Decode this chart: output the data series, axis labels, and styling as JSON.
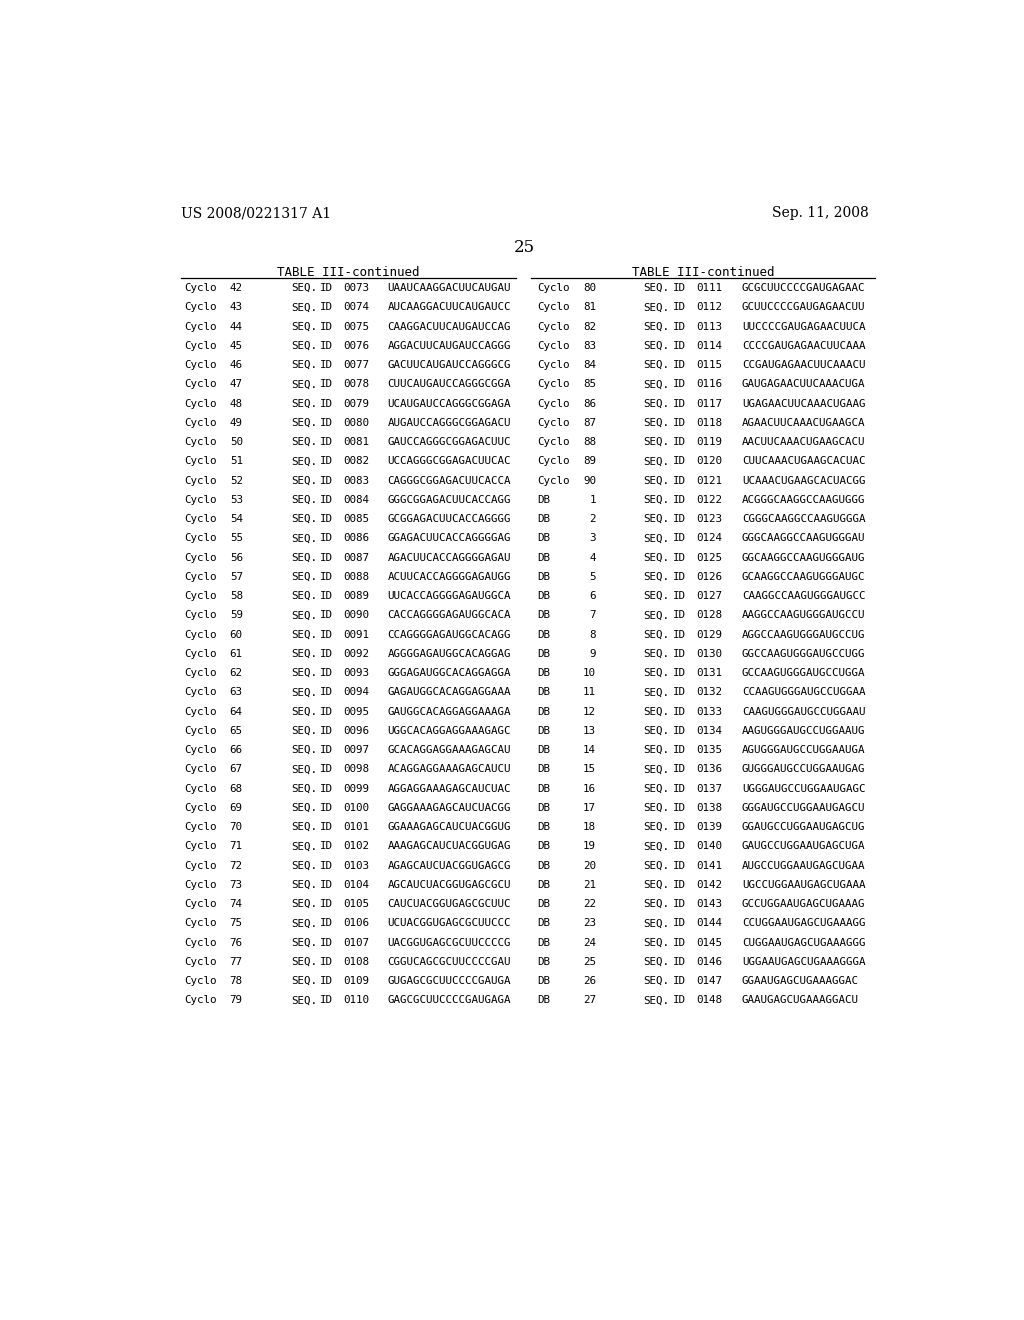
{
  "header_left": "US 2008/0221317 A1",
  "header_right": "Sep. 11, 2008",
  "page_number": "25",
  "table_title": "TABLE III-continued",
  "left_table": [
    [
      "Cyclo",
      "42",
      "SEQ.",
      "ID",
      "0073",
      "UAAUCAAGGACUUCAUGAU"
    ],
    [
      "Cyclo",
      "43",
      "SEQ.",
      "ID",
      "0074",
      "AUCAAGGACUUCAUGAUCC"
    ],
    [
      "Cyclo",
      "44",
      "SEQ.",
      "ID",
      "0075",
      "CAAGGACUUCAUGAUCCAG"
    ],
    [
      "Cyclo",
      "45",
      "SEQ.",
      "ID",
      "0076",
      "AGGACUUCAUGAUCCAGGG"
    ],
    [
      "Cyclo",
      "46",
      "SEQ.",
      "ID",
      "0077",
      "GACUUCAUGAUCCAGGGCG"
    ],
    [
      "Cyclo",
      "47",
      "SEQ.",
      "ID",
      "0078",
      "CUUCAUGAUCCAGGGCGGA"
    ],
    [
      "Cyclo",
      "48",
      "SEQ.",
      "ID",
      "0079",
      "UCAUGAUCCAGGGCGGAGA"
    ],
    [
      "Cyclo",
      "49",
      "SEQ.",
      "ID",
      "0080",
      "AUGAUCCAGGGCGGAGACU"
    ],
    [
      "Cyclo",
      "50",
      "SEQ.",
      "ID",
      "0081",
      "GAUCCAGGGCGGAGACUUC"
    ],
    [
      "Cyclo",
      "51",
      "SEQ.",
      "ID",
      "0082",
      "UCCAGGGCGGAGACUUCAC"
    ],
    [
      "Cyclo",
      "52",
      "SEQ.",
      "ID",
      "0083",
      "CAGGGCGGAGACUUCACCA"
    ],
    [
      "Cyclo",
      "53",
      "SEQ.",
      "ID",
      "0084",
      "GGGCGGAGACUUCACCAGG"
    ],
    [
      "Cyclo",
      "54",
      "SEQ.",
      "ID",
      "0085",
      "GCGGAGACUUCACCAGGGG"
    ],
    [
      "Cyclo",
      "55",
      "SEQ.",
      "ID",
      "0086",
      "GGAGACUUCACCAGGGGAG"
    ],
    [
      "Cyclo",
      "56",
      "SEQ.",
      "ID",
      "0087",
      "AGACUUCACCAGGGGAGAU"
    ],
    [
      "Cyclo",
      "57",
      "SEQ.",
      "ID",
      "0088",
      "ACUUCACCAGGGGAGAUGG"
    ],
    [
      "Cyclo",
      "58",
      "SEQ.",
      "ID",
      "0089",
      "UUCACCAGGGGAGAUGGCA"
    ],
    [
      "Cyclo",
      "59",
      "SEQ.",
      "ID",
      "0090",
      "CACCAGGGGAGAUGGCACA"
    ],
    [
      "Cyclo",
      "60",
      "SEQ.",
      "ID",
      "0091",
      "CCAGGGGAGAUGGCACAGG"
    ],
    [
      "Cyclo",
      "61",
      "SEQ.",
      "ID",
      "0092",
      "AGGGGAGAUGGCACAGGAG"
    ],
    [
      "Cyclo",
      "62",
      "SEQ.",
      "ID",
      "0093",
      "GGGAGAUGGCACAGGAGGA"
    ],
    [
      "Cyclo",
      "63",
      "SEQ.",
      "ID",
      "0094",
      "GAGAUGGCACAGGAGGAAA"
    ],
    [
      "Cyclo",
      "64",
      "SEQ.",
      "ID",
      "0095",
      "GAUGGCACAGGAGGAAAGA"
    ],
    [
      "Cyclo",
      "65",
      "SEQ.",
      "ID",
      "0096",
      "UGGCACAGGAGGAAAGAGC"
    ],
    [
      "Cyclo",
      "66",
      "SEQ.",
      "ID",
      "0097",
      "GCACAGGAGGAAAGAGCAU"
    ],
    [
      "Cyclo",
      "67",
      "SEQ.",
      "ID",
      "0098",
      "ACAGGAGGAAAGAGCAUCU"
    ],
    [
      "Cyclo",
      "68",
      "SEQ.",
      "ID",
      "0099",
      "AGGAGGAAAGAGCAUCUAC"
    ],
    [
      "Cyclo",
      "69",
      "SEQ.",
      "ID",
      "0100",
      "GAGGAAAGAGCAUCUACGG"
    ],
    [
      "Cyclo",
      "70",
      "SEQ.",
      "ID",
      "0101",
      "GGAAAGAGCAUCUACGGUG"
    ],
    [
      "Cyclo",
      "71",
      "SEQ.",
      "ID",
      "0102",
      "AAAGAGCAUCUACGGUGAG"
    ],
    [
      "Cyclo",
      "72",
      "SEQ.",
      "ID",
      "0103",
      "AGAGCAUCUACGGUGAGCG"
    ],
    [
      "Cyclo",
      "73",
      "SEQ.",
      "ID",
      "0104",
      "AGCAUCUACGGUGAGCGCU"
    ],
    [
      "Cyclo",
      "74",
      "SEQ.",
      "ID",
      "0105",
      "CAUCUACGGUGAGCGCUUC"
    ],
    [
      "Cyclo",
      "75",
      "SEQ.",
      "ID",
      "0106",
      "UCUACGGUGAGCGCUUCCC"
    ],
    [
      "Cyclo",
      "76",
      "SEQ.",
      "ID",
      "0107",
      "UACGGUGAGCGCUUCCCCG"
    ],
    [
      "Cyclo",
      "77",
      "SEQ.",
      "ID",
      "0108",
      "CGGUCAGCGCUUCCCCGAU"
    ],
    [
      "Cyclo",
      "78",
      "SEQ.",
      "ID",
      "0109",
      "GUGAGCGCUUCCCCGAUGA"
    ],
    [
      "Cyclo",
      "79",
      "SEQ.",
      "ID",
      "0110",
      "GAGCGCUUCCCCGAUGAGA"
    ]
  ],
  "right_table": [
    [
      "Cyclo",
      "80",
      "SEQ.",
      "ID",
      "0111",
      "GCGCUUCCCCGAUGAGAAC"
    ],
    [
      "Cyclo",
      "81",
      "SEQ.",
      "ID",
      "0112",
      "GCUUCCCCGAUGAGAACUU"
    ],
    [
      "Cyclo",
      "82",
      "SEQ.",
      "ID",
      "0113",
      "UUCCCCGAUGAGAACUUCA"
    ],
    [
      "Cyclo",
      "83",
      "SEQ.",
      "ID",
      "0114",
      "CCCCGAUGAGAACUUCAAA"
    ],
    [
      "Cyclo",
      "84",
      "SEQ.",
      "ID",
      "0115",
      "CCGAUGAGAACUUCAAACU"
    ],
    [
      "Cyclo",
      "85",
      "SEQ.",
      "ID",
      "0116",
      "GAUGAGAACUUCAAACUGA"
    ],
    [
      "Cyclo",
      "86",
      "SEQ.",
      "ID",
      "0117",
      "UGAGAACUUCAAACUGAAG"
    ],
    [
      "Cyclo",
      "87",
      "SEQ.",
      "ID",
      "0118",
      "AGAACUUCAAACUGAAGCA"
    ],
    [
      "Cyclo",
      "88",
      "SEQ.",
      "ID",
      "0119",
      "AACUUCAAACUGAAGCACU"
    ],
    [
      "Cyclo",
      "89",
      "SEQ.",
      "ID",
      "0120",
      "CUUCAAACUGAAGCACUAC"
    ],
    [
      "Cyclo",
      "90",
      "SEQ.",
      "ID",
      "0121",
      "UCAAACUGAAGCACUACGG"
    ],
    [
      "DB",
      "1",
      "SEQ.",
      "ID",
      "0122",
      "ACGGGCAAGGCCAAGUGGG"
    ],
    [
      "DB",
      "2",
      "SEQ.",
      "ID",
      "0123",
      "CGGGCAAGGCCAAGUGGGA"
    ],
    [
      "DB",
      "3",
      "SEQ.",
      "ID",
      "0124",
      "GGGCAAGGCCAAGUGGGAU"
    ],
    [
      "DB",
      "4",
      "SEQ.",
      "ID",
      "0125",
      "GGCAAGGCCAAGUGGGAUG"
    ],
    [
      "DB",
      "5",
      "SEQ.",
      "ID",
      "0126",
      "GCAAGGCCAAGUGGGAUGC"
    ],
    [
      "DB",
      "6",
      "SEQ.",
      "ID",
      "0127",
      "CAAGGCCAAGUGGGAUGCC"
    ],
    [
      "DB",
      "7",
      "SEQ.",
      "ID",
      "0128",
      "AAGGCCAAGUGGGAUGCCU"
    ],
    [
      "DB",
      "8",
      "SEQ.",
      "ID",
      "0129",
      "AGGCCAAGUGGGAUGCCUG"
    ],
    [
      "DB",
      "9",
      "SEQ.",
      "ID",
      "0130",
      "GGCCAAGUGGGAUGCCUGG"
    ],
    [
      "DB",
      "10",
      "SEQ.",
      "ID",
      "0131",
      "GCCAAGUGGGAUGCCUGGA"
    ],
    [
      "DB",
      "11",
      "SEQ.",
      "ID",
      "0132",
      "CCAAGUGGGAUGCCUGGAA"
    ],
    [
      "DB",
      "12",
      "SEQ.",
      "ID",
      "0133",
      "CAAGUGGGAUGCCUGGAAU"
    ],
    [
      "DB",
      "13",
      "SEQ.",
      "ID",
      "0134",
      "AAGUGGGAUGCCUGGAAUG"
    ],
    [
      "DB",
      "14",
      "SEQ.",
      "ID",
      "0135",
      "AGUGGGAUGCCUGGAAUGA"
    ],
    [
      "DB",
      "15",
      "SEQ.",
      "ID",
      "0136",
      "GUGGGAUGCCUGGAAUGAG"
    ],
    [
      "DB",
      "16",
      "SEQ.",
      "ID",
      "0137",
      "UGGGAUGCCUGGAAUGAGC"
    ],
    [
      "DB",
      "17",
      "SEQ.",
      "ID",
      "0138",
      "GGGAUGCCUGGAAUGAGCU"
    ],
    [
      "DB",
      "18",
      "SEQ.",
      "ID",
      "0139",
      "GGAUGCCUGGAAUGAGCUG"
    ],
    [
      "DB",
      "19",
      "SEQ.",
      "ID",
      "0140",
      "GAUGCCUGGAAUGAGCUGA"
    ],
    [
      "DB",
      "20",
      "SEQ.",
      "ID",
      "0141",
      "AUGCCUGGAAUGAGCUGAA"
    ],
    [
      "DB",
      "21",
      "SEQ.",
      "ID",
      "0142",
      "UGCCUGGAAUGAGCUGAAA"
    ],
    [
      "DB",
      "22",
      "SEQ.",
      "ID",
      "0143",
      "GCCUGGAAUGAGCUGAAAG"
    ],
    [
      "DB",
      "23",
      "SEQ.",
      "ID",
      "0144",
      "CCUGGAAUGAGCUGAAAGG"
    ],
    [
      "DB",
      "24",
      "SEQ.",
      "ID",
      "0145",
      "CUGGAAUGAGCUGAAAGGG"
    ],
    [
      "DB",
      "25",
      "SEQ.",
      "ID",
      "0146",
      "UGGAAUGAGCUGAAAGGGA"
    ],
    [
      "DB",
      "26",
      "SEQ.",
      "ID",
      "0147",
      "GGAAUGAGCUGAAAGGAC"
    ],
    [
      "DB",
      "27",
      "SEQ.",
      "ID",
      "0148",
      "GAAUGAGCUGAAAGGACU"
    ]
  ],
  "bg_color": "#ffffff",
  "text_color": "#000000",
  "header_fontsize": 10,
  "pagenum_fontsize": 12,
  "title_fontsize": 9,
  "row_fontsize": 7.8,
  "line_color": "#000000"
}
